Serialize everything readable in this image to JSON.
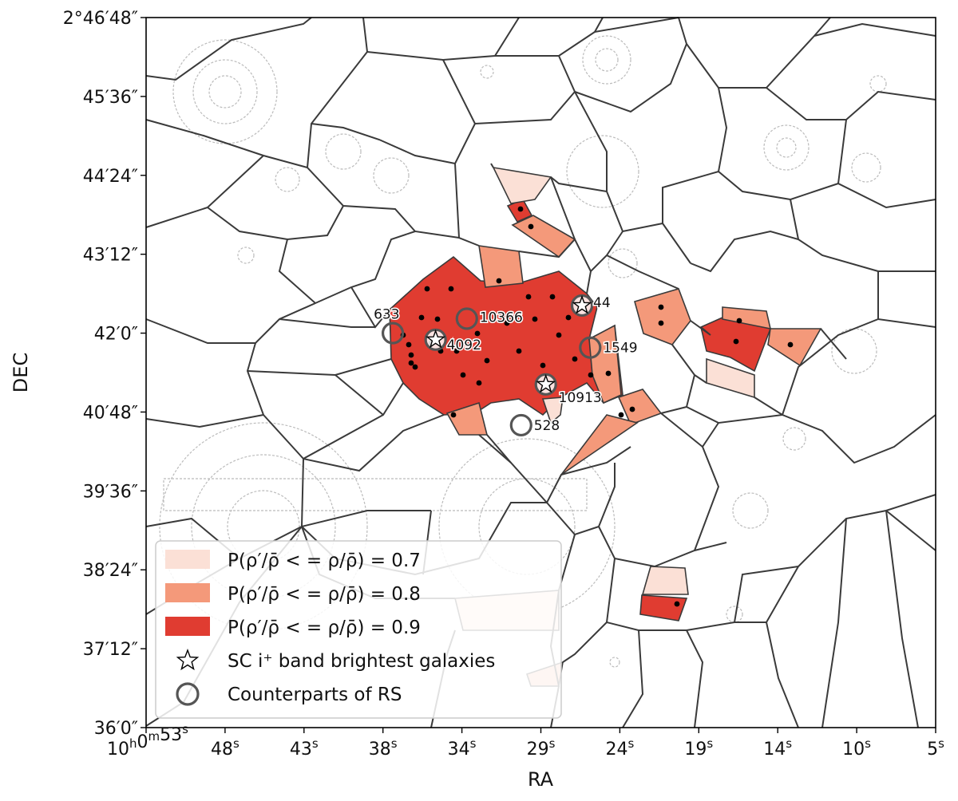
{
  "chart_data": {
    "type": "scatter",
    "title": "",
    "xlabel": "RA",
    "ylabel": "DEC",
    "x_ticks": [
      "10h0m53s",
      "48s",
      "43s",
      "38s",
      "34s",
      "29s",
      "24s",
      "19s",
      "14s",
      "10s",
      "5s"
    ],
    "y_ticks": [
      "2°46′48″",
      "45′36″",
      "44′24″",
      "43′12″",
      "42′0″",
      "40′48″",
      "39′36″",
      "38′24″",
      "37′12″",
      "36′0″"
    ],
    "legend": {
      "placement": "lower-left",
      "entries": [
        {
          "label": "P(ρ′/ρ̄ < = ρ/ρ̄) = 0.7",
          "color": "#fbe0d6",
          "kind": "patch"
        },
        {
          "label": "P(ρ′/ρ̄ < = ρ/ρ̄) = 0.8",
          "color": "#f4997a",
          "kind": "patch"
        },
        {
          "label": "P(ρ′/ρ̄ < = ρ/ρ̄) = 0.9",
          "color": "#e03c31",
          "kind": "patch"
        },
        {
          "label": "SC i⁺ band brightest galaxies",
          "kind": "star"
        },
        {
          "label": "Counterparts of RS",
          "kind": "circle"
        }
      ]
    },
    "labeled_objects": [
      {
        "id": "633",
        "ra_s": 38.0,
        "dec_min": 42.0,
        "marker": "circle"
      },
      {
        "id": "4092",
        "ra_s": 35.4,
        "dec_min": 41.9,
        "marker": "star-circle"
      },
      {
        "id": "10366",
        "ra_s": 33.5,
        "dec_min": 42.22,
        "marker": "circle"
      },
      {
        "id": "44",
        "ra_s": 26.5,
        "dec_min": 42.42,
        "marker": "star-circle"
      },
      {
        "id": "1549",
        "ra_s": 26.0,
        "dec_min": 41.78,
        "marker": "circle"
      },
      {
        "id": "10913",
        "ra_s": 28.7,
        "dec_min": 41.22,
        "marker": "star-circle"
      },
      {
        "id": "528",
        "ra_s": 30.2,
        "dec_min": 40.6,
        "marker": "circle"
      }
    ],
    "colors": {
      "p07": "#fbe0d6",
      "p08": "#f4997a",
      "p09": "#e03c31",
      "edge": "#3a3a3a"
    }
  }
}
